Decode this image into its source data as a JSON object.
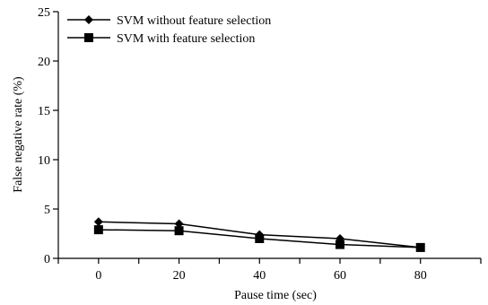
{
  "chart_data": {
    "type": "line",
    "xlabel": "Pause time (sec)",
    "ylabel": "False negative rate (%)",
    "categories": [
      "0",
      "20",
      "40",
      "60",
      "80"
    ],
    "x": [
      0,
      20,
      40,
      60,
      80
    ],
    "xlim": [
      -10,
      95
    ],
    "ylim": [
      0,
      25
    ],
    "y_ticks": [
      "0",
      "5",
      "10",
      "15",
      "20",
      "25"
    ],
    "grid": false,
    "legend_position": "top-left",
    "series": [
      {
        "name": "SVM without feature selection",
        "marker": "diamond",
        "color": "#000000",
        "values": [
          3.7,
          3.5,
          2.4,
          2.0,
          1.1
        ]
      },
      {
        "name": "SVM with feature selection",
        "marker": "square",
        "color": "#000000",
        "values": [
          2.9,
          2.8,
          2.0,
          1.4,
          1.1
        ]
      }
    ]
  }
}
